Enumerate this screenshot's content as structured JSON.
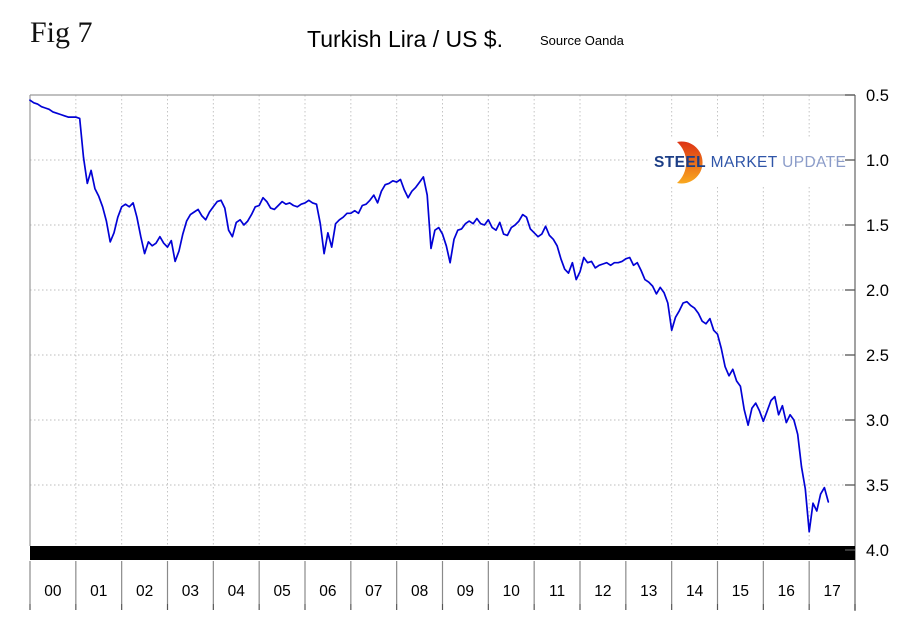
{
  "figure": {
    "fig_label": "Fig 7",
    "title": "Turkish Lira / US $.",
    "source": "Source Oanda"
  },
  "logo": {
    "word1": "STEEL",
    "word2": "MARKET",
    "word3": "UPDATE",
    "word1_color": "#1c3e86",
    "word2_color": "#2f55a8",
    "word3_color": "#8b9cc9",
    "crescent_color_top": "#dd3314",
    "crescent_color_bottom": "#f9a91f"
  },
  "chart_data": {
    "type": "line",
    "title": "Turkish Lira / US $.",
    "source": "Oanda",
    "legend": "none",
    "grid": "dotted",
    "x_tick_labels": [
      "00",
      "01",
      "02",
      "03",
      "04",
      "05",
      "06",
      "07",
      "08",
      "09",
      "10",
      "11",
      "12",
      "13",
      "14",
      "15",
      "16",
      "17"
    ],
    "y_ticks": [
      0.5,
      1.0,
      1.5,
      2.0,
      2.5,
      3.0,
      3.5,
      4.0
    ],
    "y_axis": {
      "side": "right",
      "inverted": true,
      "min": 0.5,
      "max": 4.0
    },
    "x_axis": {
      "start_year": 2000,
      "end_year": 2018,
      "points_per_year": 12
    },
    "line_color": "#0202d6",
    "axis_bar_color": "#000000",
    "series": [
      {
        "name": "Turkish Lira per US Dollar (monthly, Jan 2000 - Jun 2017)",
        "start": "2000-01",
        "values": [
          0.54,
          0.56,
          0.57,
          0.59,
          0.6,
          0.61,
          0.63,
          0.64,
          0.65,
          0.66,
          0.67,
          0.67,
          0.67,
          0.68,
          0.98,
          1.18,
          1.08,
          1.22,
          1.28,
          1.36,
          1.47,
          1.63,
          1.56,
          1.44,
          1.36,
          1.34,
          1.36,
          1.33,
          1.44,
          1.59,
          1.72,
          1.63,
          1.66,
          1.64,
          1.59,
          1.64,
          1.67,
          1.62,
          1.78,
          1.7,
          1.57,
          1.47,
          1.42,
          1.4,
          1.38,
          1.43,
          1.46,
          1.4,
          1.36,
          1.32,
          1.31,
          1.37,
          1.54,
          1.59,
          1.48,
          1.46,
          1.5,
          1.47,
          1.42,
          1.36,
          1.35,
          1.29,
          1.32,
          1.37,
          1.38,
          1.35,
          1.32,
          1.34,
          1.33,
          1.35,
          1.36,
          1.34,
          1.33,
          1.31,
          1.33,
          1.34,
          1.49,
          1.72,
          1.56,
          1.67,
          1.49,
          1.46,
          1.44,
          1.41,
          1.41,
          1.39,
          1.41,
          1.35,
          1.34,
          1.31,
          1.27,
          1.33,
          1.24,
          1.19,
          1.18,
          1.16,
          1.17,
          1.15,
          1.23,
          1.29,
          1.24,
          1.21,
          1.17,
          1.13,
          1.27,
          1.68,
          1.54,
          1.52,
          1.57,
          1.66,
          1.79,
          1.61,
          1.54,
          1.53,
          1.49,
          1.47,
          1.49,
          1.45,
          1.49,
          1.5,
          1.46,
          1.52,
          1.54,
          1.48,
          1.57,
          1.58,
          1.52,
          1.5,
          1.47,
          1.42,
          1.44,
          1.53,
          1.56,
          1.59,
          1.57,
          1.51,
          1.58,
          1.61,
          1.66,
          1.76,
          1.84,
          1.87,
          1.79,
          1.92,
          1.86,
          1.75,
          1.79,
          1.78,
          1.83,
          1.81,
          1.8,
          1.79,
          1.81,
          1.79,
          1.79,
          1.78,
          1.76,
          1.75,
          1.81,
          1.79,
          1.85,
          1.92,
          1.94,
          1.97,
          2.03,
          1.98,
          2.02,
          2.1,
          2.31,
          2.21,
          2.16,
          2.1,
          2.09,
          2.12,
          2.14,
          2.18,
          2.24,
          2.26,
          2.22,
          2.31,
          2.34,
          2.45,
          2.59,
          2.66,
          2.61,
          2.7,
          2.74,
          2.92,
          3.04,
          2.91,
          2.87,
          2.93,
          3.01,
          2.93,
          2.85,
          2.82,
          2.96,
          2.89,
          3.02,
          2.96,
          3.0,
          3.11,
          3.36,
          3.53,
          3.86,
          3.64,
          3.7,
          3.57,
          3.52,
          3.63
        ]
      }
    ]
  }
}
